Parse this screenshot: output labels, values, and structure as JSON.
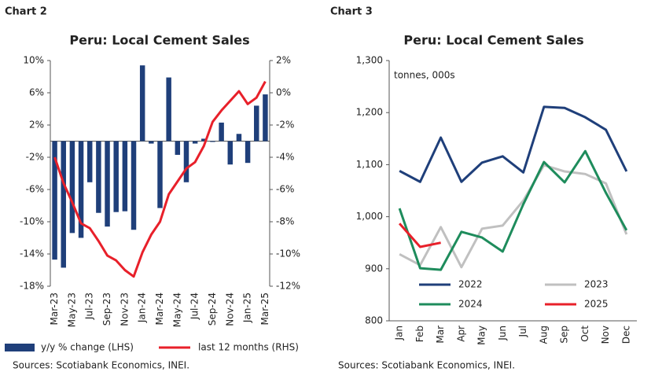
{
  "chart_data": [
    {
      "type": "bar",
      "label": "Chart 2",
      "title": "Peru: Local Cement Sales",
      "categories": [
        "Mar-23",
        null,
        "May-23",
        null,
        "Jul-23",
        null,
        "Sep-23",
        null,
        "Nov-23",
        null,
        "Jan-24",
        null,
        "Mar-24",
        null,
        "May-24",
        null,
        "Jul-24",
        null,
        "Sep-24",
        null,
        "Nov-24",
        null,
        "Jan-25",
        null,
        "Mar-25"
      ],
      "series": [
        {
          "name": "y/y % change (LHS)",
          "type": "bar",
          "color": "#1f3f7a",
          "values": [
            -14.7,
            -15.7,
            -11.4,
            -12.0,
            -5.1,
            -8.9,
            -10.6,
            -8.8,
            -8.7,
            -11.0,
            9.4,
            -0.3,
            -8.3,
            7.9,
            -1.7,
            -5.1,
            -0.3,
            0.3,
            -0.1,
            2.3,
            -2.9,
            0.9,
            -2.7,
            4.4,
            5.8
          ]
        },
        {
          "name": "last 12 months (RHS)",
          "type": "line",
          "axis": "y2",
          "color": "#e8202a",
          "values": [
            -4.0,
            -5.6,
            -6.8,
            -8.1,
            -8.4,
            -9.2,
            -10.1,
            -10.4,
            -11.0,
            -11.4,
            -9.9,
            -8.8,
            -8.0,
            -6.3,
            -5.5,
            -4.7,
            -4.3,
            -3.3,
            -1.8,
            -1.1,
            -0.5,
            0.1,
            -0.7,
            -0.3,
            0.7
          ]
        }
      ],
      "ylim": [
        -18,
        10
      ],
      "yticks": [
        {
          "value": -18,
          "label": "-18%"
        },
        {
          "value": -14,
          "label": "-14%"
        },
        {
          "value": -10,
          "label": "-10%"
        },
        {
          "value": -6,
          "label": "-6%"
        },
        {
          "value": -2,
          "label": "-2%"
        },
        {
          "value": 2,
          "label": "2%"
        },
        {
          "value": 6,
          "label": "6%"
        },
        {
          "value": 10,
          "label": "10%"
        }
      ],
      "y2lim": [
        -12,
        2
      ],
      "y2ticks": [
        {
          "value": -12,
          "label": "-12%"
        },
        {
          "value": -10,
          "label": "-10%"
        },
        {
          "value": -8,
          "label": "-8%"
        },
        {
          "value": -6,
          "label": "-6%"
        },
        {
          "value": -4,
          "label": "-4%"
        },
        {
          "value": -2,
          "label": "-2%"
        },
        {
          "value": 0,
          "label": "0%"
        },
        {
          "value": 2,
          "label": "2%"
        }
      ],
      "source": "Sources: Scotiabank Economics, INEI."
    },
    {
      "type": "line",
      "label": "Chart 3",
      "title": "Peru: Local Cement Sales",
      "annotation": "tonnes, 000s",
      "categories": [
        "Jan",
        "Feb",
        "Mar",
        "Apr",
        "May",
        "Jun",
        "Jul",
        "Aug",
        "Sep",
        "Oct",
        "Nov",
        "Dec"
      ],
      "series": [
        {
          "name": "2022",
          "color": "#1f3f7a",
          "values": [
            1088,
            1067,
            1152,
            1067,
            1104,
            1116,
            1085,
            1211,
            1209,
            1191,
            1167,
            1087
          ]
        },
        {
          "name": "2023",
          "color": "#c0c0c0",
          "values": [
            928,
            907,
            980,
            903,
            977,
            983,
            1031,
            1099,
            1087,
            1082,
            1064,
            966
          ]
        },
        {
          "name": "2024",
          "color": "#1e8c5c",
          "values": [
            1016,
            901,
            898,
            971,
            960,
            933,
            1024,
            1105,
            1066,
            1126,
            1046,
            974
          ]
        },
        {
          "name": "2025",
          "color": "#e8202a",
          "values": [
            987,
            942,
            950,
            null,
            null,
            null,
            null,
            null,
            null,
            null,
            null,
            null
          ]
        }
      ],
      "ylim": [
        800,
        1300
      ],
      "yticks": [
        800,
        900,
        {
          "value": 1000,
          "label": "1,000"
        },
        {
          "value": 1100,
          "label": "1,100"
        },
        {
          "value": 1200,
          "label": "1,200"
        },
        {
          "value": 1300,
          "label": "1,300"
        }
      ],
      "source": "Sources: Scotiabank Economics, INEI."
    }
  ]
}
